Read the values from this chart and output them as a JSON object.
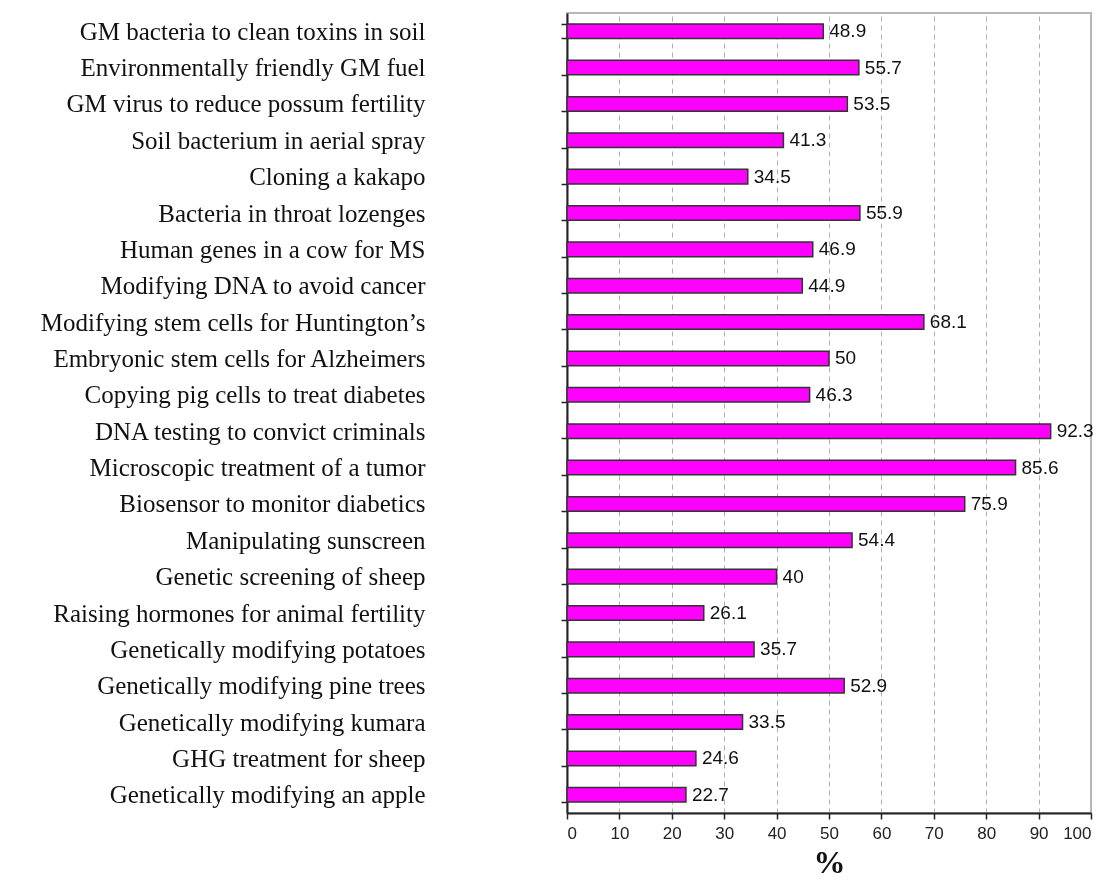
{
  "chart_data": {
    "type": "bar",
    "orientation": "horizontal",
    "xlabel": "%",
    "categories": [
      "GM bacteria to clean toxins in soil",
      "Environmentally friendly GM fuel",
      "GM virus to reduce possum fertility",
      "Soil bacterium in aerial spray",
      "Cloning a kakapo",
      "Bacteria in throat lozenges",
      "Human genes in a cow for MS",
      "Modifying DNA to avoid cancer",
      "Modifying stem cells for Huntington’s",
      "Embryonic stem cells for Alzheimers",
      "Copying pig cells to treat diabetes",
      "DNA testing to convict criminals",
      "Microscopic treatment of a tumor",
      "Biosensor to monitor diabetics",
      "Manipulating sunscreen",
      "Genetic screening of sheep",
      "Raising hormones for animal fertility",
      "Genetically modifying potatoes",
      "Genetically modifying pine trees",
      "Genetically modifying kumara",
      "GHG treatment for sheep",
      "Genetically modifying an apple"
    ],
    "values": [
      48.9,
      55.7,
      53.5,
      41.3,
      34.5,
      55.9,
      46.9,
      44.9,
      68.1,
      50,
      46.3,
      92.3,
      85.6,
      75.9,
      54.4,
      40,
      26.1,
      35.7,
      52.9,
      33.5,
      24.6,
      22.7
    ],
    "color": "#ff00ff",
    "xlim": [
      0,
      100
    ],
    "xticks": [
      0,
      10,
      20,
      30,
      40,
      50,
      60,
      70,
      80,
      90,
      100
    ],
    "grid": "x",
    "data_labels": true
  }
}
